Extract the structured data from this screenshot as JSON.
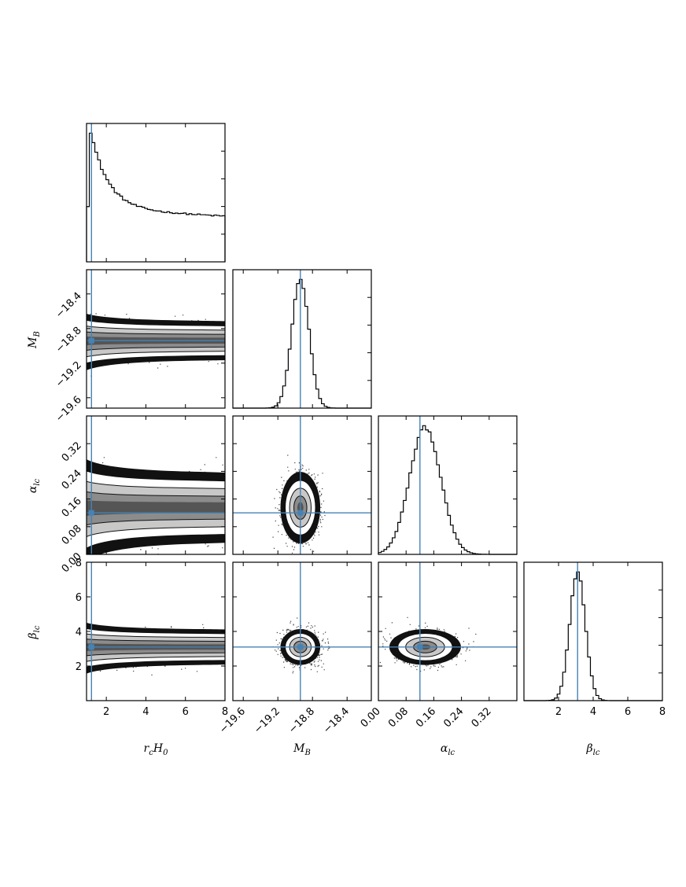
{
  "chart_data": {
    "type": "corner",
    "parameters": [
      {
        "key": "rcH0",
        "label": "r",
        "label_sub": "c",
        "label_tail": "H",
        "label_tail_sub": "0",
        "range": [
          1.0,
          8.0
        ],
        "ticks": [
          "2",
          "4",
          "6",
          "8"
        ],
        "tick_values": [
          2,
          4,
          6,
          8
        ],
        "truth": 1.25
      },
      {
        "key": "MB",
        "label": "M",
        "label_sub": "B",
        "range": [
          -19.72,
          -18.12
        ],
        "ticks": [
          "−19.6",
          "−19.2",
          "−18.8",
          "−18.4"
        ],
        "tick_values": [
          -19.6,
          -19.2,
          -18.8,
          -18.4
        ],
        "truth": -18.94
      },
      {
        "key": "alpha_lc",
        "label": "α",
        "label_sub": "lc",
        "range": [
          0.0,
          0.4
        ],
        "ticks": [
          "0.00",
          "0.08",
          "0.16",
          "0.24",
          "0.32"
        ],
        "tick_values": [
          0.0,
          0.08,
          0.16,
          0.24,
          0.32
        ],
        "truth": 0.12
      },
      {
        "key": "beta_lc",
        "label": "β",
        "label_sub": "lc",
        "range": [
          0.0,
          8.0
        ],
        "ticks": [
          "2",
          "4",
          "6",
          "8"
        ],
        "tick_values": [
          2,
          4,
          6,
          8
        ],
        "truth": 3.1
      }
    ],
    "marginals": [
      {
        "param": "rcH0",
        "shape": "decaying",
        "peak_x": 1.3
      },
      {
        "param": "MB",
        "shape": "gaussian",
        "mean": -18.94,
        "sd": 0.1
      },
      {
        "param": "alpha_lc",
        "shape": "gaussian",
        "mean": 0.135,
        "sd": 0.045
      },
      {
        "param": "beta_lc",
        "shape": "gaussian",
        "mean": 3.1,
        "sd": 0.45
      }
    ],
    "truth_color": "#4682b4",
    "grid": false
  }
}
